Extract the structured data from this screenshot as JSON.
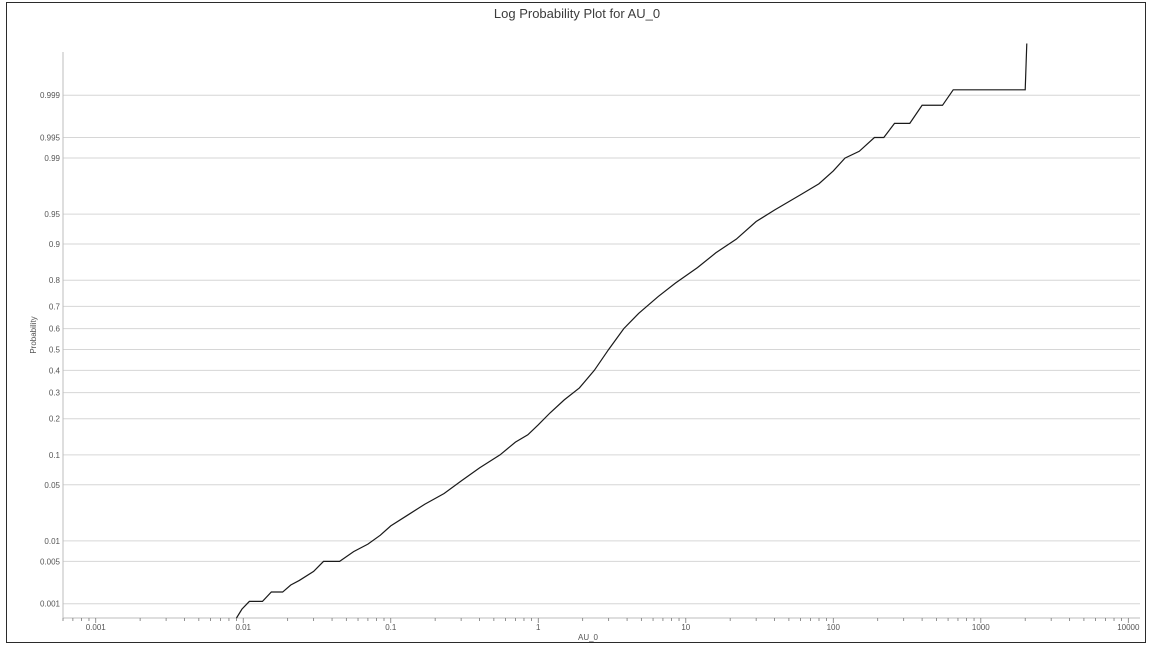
{
  "chart_data": {
    "type": "line",
    "title": "Log Probability Plot for AU_0",
    "xlabel": "AU_0",
    "ylabel": "Probability",
    "x_scale": "log",
    "y_scale": "probability",
    "xlim": [
      0.0006,
      12000
    ],
    "grid": "horizontal",
    "x_ticks": [
      {
        "v": 0.001,
        "label": "0.001"
      },
      {
        "v": 0.01,
        "label": "0.01"
      },
      {
        "v": 0.1,
        "label": "0.1"
      },
      {
        "v": 1,
        "label": "1"
      },
      {
        "v": 10,
        "label": "10"
      },
      {
        "v": 100,
        "label": "100"
      },
      {
        "v": 1000,
        "label": "1000"
      },
      {
        "v": 10000,
        "label": "10000"
      }
    ],
    "y_ticks": [
      {
        "v": 0.001,
        "label": "0.001"
      },
      {
        "v": 0.005,
        "label": "0.005"
      },
      {
        "v": 0.01,
        "label": "0.01"
      },
      {
        "v": 0.05,
        "label": "0.05"
      },
      {
        "v": 0.1,
        "label": "0.1"
      },
      {
        "v": 0.2,
        "label": "0.2"
      },
      {
        "v": 0.3,
        "label": "0.3"
      },
      {
        "v": 0.4,
        "label": "0.4"
      },
      {
        "v": 0.5,
        "label": "0.5"
      },
      {
        "v": 0.6,
        "label": "0.6"
      },
      {
        "v": 0.7,
        "label": "0.7"
      },
      {
        "v": 0.8,
        "label": "0.8"
      },
      {
        "v": 0.9,
        "label": "0.9"
      },
      {
        "v": 0.95,
        "label": "0.95"
      },
      {
        "v": 0.99,
        "label": "0.99"
      },
      {
        "v": 0.995,
        "label": "0.995"
      },
      {
        "v": 0.999,
        "label": "0.999"
      }
    ],
    "series": [
      {
        "points": [
          [
            0.009,
            0.00055
          ],
          [
            0.0098,
            0.0008
          ],
          [
            0.011,
            0.0011
          ],
          [
            0.0135,
            0.0011
          ],
          [
            0.0155,
            0.0016
          ],
          [
            0.0185,
            0.0016
          ],
          [
            0.021,
            0.0021
          ],
          [
            0.024,
            0.0025
          ],
          [
            0.03,
            0.0035
          ],
          [
            0.035,
            0.005
          ],
          [
            0.045,
            0.005
          ],
          [
            0.056,
            0.007
          ],
          [
            0.07,
            0.009
          ],
          [
            0.085,
            0.012
          ],
          [
            0.1,
            0.016
          ],
          [
            0.13,
            0.022
          ],
          [
            0.17,
            0.03
          ],
          [
            0.23,
            0.04
          ],
          [
            0.3,
            0.055
          ],
          [
            0.4,
            0.075
          ],
          [
            0.55,
            0.1
          ],
          [
            0.7,
            0.13
          ],
          [
            0.85,
            0.15
          ],
          [
            1.0,
            0.18
          ],
          [
            1.2,
            0.22
          ],
          [
            1.5,
            0.27
          ],
          [
            1.9,
            0.32
          ],
          [
            2.4,
            0.4
          ],
          [
            3.0,
            0.5
          ],
          [
            3.8,
            0.6
          ],
          [
            4.8,
            0.67
          ],
          [
            6.5,
            0.74
          ],
          [
            8.5,
            0.79
          ],
          [
            12.0,
            0.84
          ],
          [
            16.0,
            0.88
          ],
          [
            22.0,
            0.91
          ],
          [
            30.0,
            0.94
          ],
          [
            40.0,
            0.955
          ],
          [
            60.0,
            0.97
          ],
          [
            80.0,
            0.978
          ],
          [
            100.0,
            0.985
          ],
          [
            120.0,
            0.99
          ],
          [
            150.0,
            0.992
          ],
          [
            190.0,
            0.995
          ],
          [
            220.0,
            0.995
          ],
          [
            260.0,
            0.997
          ],
          [
            330.0,
            0.997
          ],
          [
            400.0,
            0.9985
          ],
          [
            550.0,
            0.9985
          ],
          [
            650.0,
            0.9992
          ],
          [
            2000.0,
            0.9992
          ],
          [
            2050.0,
            0.9999
          ]
        ]
      }
    ]
  },
  "colors": {
    "line": "#1a1a1a",
    "grid": "#d6d6d6",
    "frame": "#2b2b2b",
    "text": "#555555"
  }
}
